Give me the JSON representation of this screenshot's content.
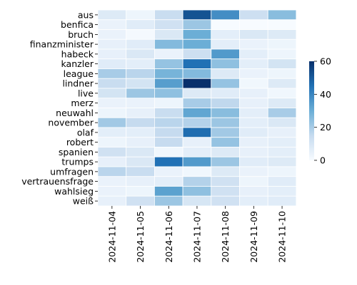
{
  "chart_data": {
    "type": "heatmap",
    "title": "",
    "xlabel": "",
    "ylabel": "",
    "x": [
      "2024-11-04",
      "2024-11-05",
      "2024-11-06",
      "2024-11-07",
      "2024-11-08",
      "2024-11-09",
      "2024-11-10"
    ],
    "y": [
      "aus",
      "benfica",
      "bruch",
      "finanzminister",
      "habeck",
      "kanzler",
      "league",
      "lindner",
      "live",
      "merz",
      "neuwahl",
      "november",
      "olaf",
      "robert",
      "spanien",
      "trumps",
      "umfragen",
      "vertrauensfrage",
      "wahlsieg",
      "weiß"
    ],
    "values": [
      [
        8,
        3,
        14,
        52,
        38,
        13,
        25
      ],
      [
        4,
        7,
        12,
        22,
        0,
        0,
        0
      ],
      [
        4,
        1,
        9,
        30,
        6,
        9,
        8
      ],
      [
        5,
        7,
        26,
        30,
        6,
        4,
        3
      ],
      [
        5,
        9,
        4,
        13,
        35,
        6,
        3
      ],
      [
        7,
        6,
        23,
        45,
        24,
        6,
        11
      ],
      [
        20,
        17,
        28,
        26,
        8,
        4,
        3
      ],
      [
        14,
        11,
        34,
        62,
        23,
        2,
        8
      ],
      [
        11,
        22,
        24,
        8,
        7,
        5,
        2
      ],
      [
        4,
        4,
        3,
        20,
        16,
        5,
        8
      ],
      [
        3,
        5,
        14,
        32,
        25,
        6,
        20
      ],
      [
        21,
        15,
        17,
        18,
        22,
        6,
        9
      ],
      [
        6,
        6,
        15,
        46,
        21,
        7,
        5
      ],
      [
        3,
        5,
        15,
        5,
        23,
        5,
        6
      ],
      [
        12,
        9,
        2,
        6,
        8,
        5,
        6
      ],
      [
        5,
        9,
        45,
        35,
        22,
        7,
        8
      ],
      [
        17,
        14,
        4,
        2,
        8,
        4,
        3
      ],
      [
        4,
        5,
        6,
        18,
        12,
        3,
        7
      ],
      [
        4,
        3,
        33,
        24,
        12,
        5,
        6
      ],
      [
        5,
        12,
        22,
        10,
        12,
        6,
        7
      ]
    ],
    "zlim": [
      0,
      60
    ],
    "colorbar_ticks": [
      0,
      20,
      40,
      60
    ],
    "colormap": [
      "#f7fbff",
      "#c6dbef",
      "#6baed6",
      "#2171b5",
      "#08306b"
    ],
    "gridline_color": "#ffffff",
    "legend": "colorbar-right",
    "grid": false
  }
}
